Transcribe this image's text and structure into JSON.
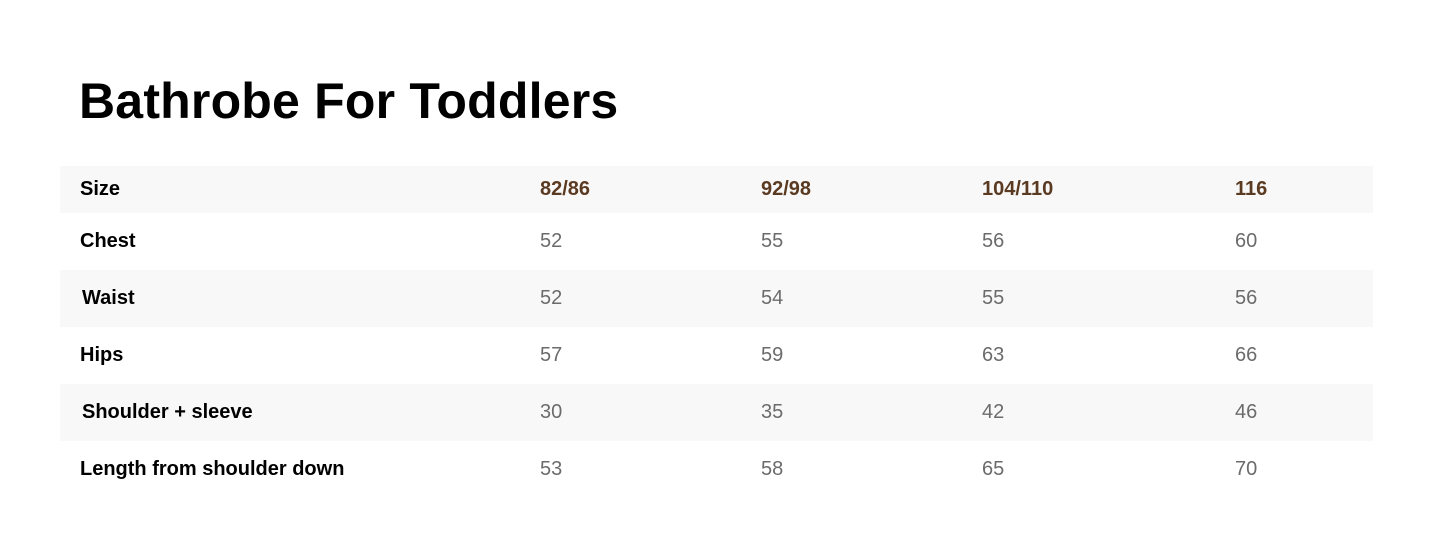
{
  "title": "Bathrobe For Toddlers",
  "table": {
    "header": {
      "label": "Size",
      "sizes": [
        "82/86",
        "92/98",
        "104/110",
        "116"
      ]
    },
    "rows": [
      {
        "label": "Chest",
        "values": [
          "52",
          "55",
          "56",
          "60"
        ]
      },
      {
        "label": "Waist",
        "values": [
          "52",
          "54",
          "55",
          "56"
        ]
      },
      {
        "label": "Hips",
        "values": [
          "57",
          "59",
          "63",
          "66"
        ]
      },
      {
        "label": "Shoulder + sleeve",
        "values": [
          "30",
          "35",
          "42",
          "46"
        ]
      },
      {
        "label": "Length from shoulder down",
        "values": [
          "53",
          "58",
          "65",
          "70"
        ]
      }
    ]
  },
  "colors": {
    "size_header": "#5b3a22",
    "value_text": "#6b6b6b",
    "stripe": "#f8f8f8"
  }
}
